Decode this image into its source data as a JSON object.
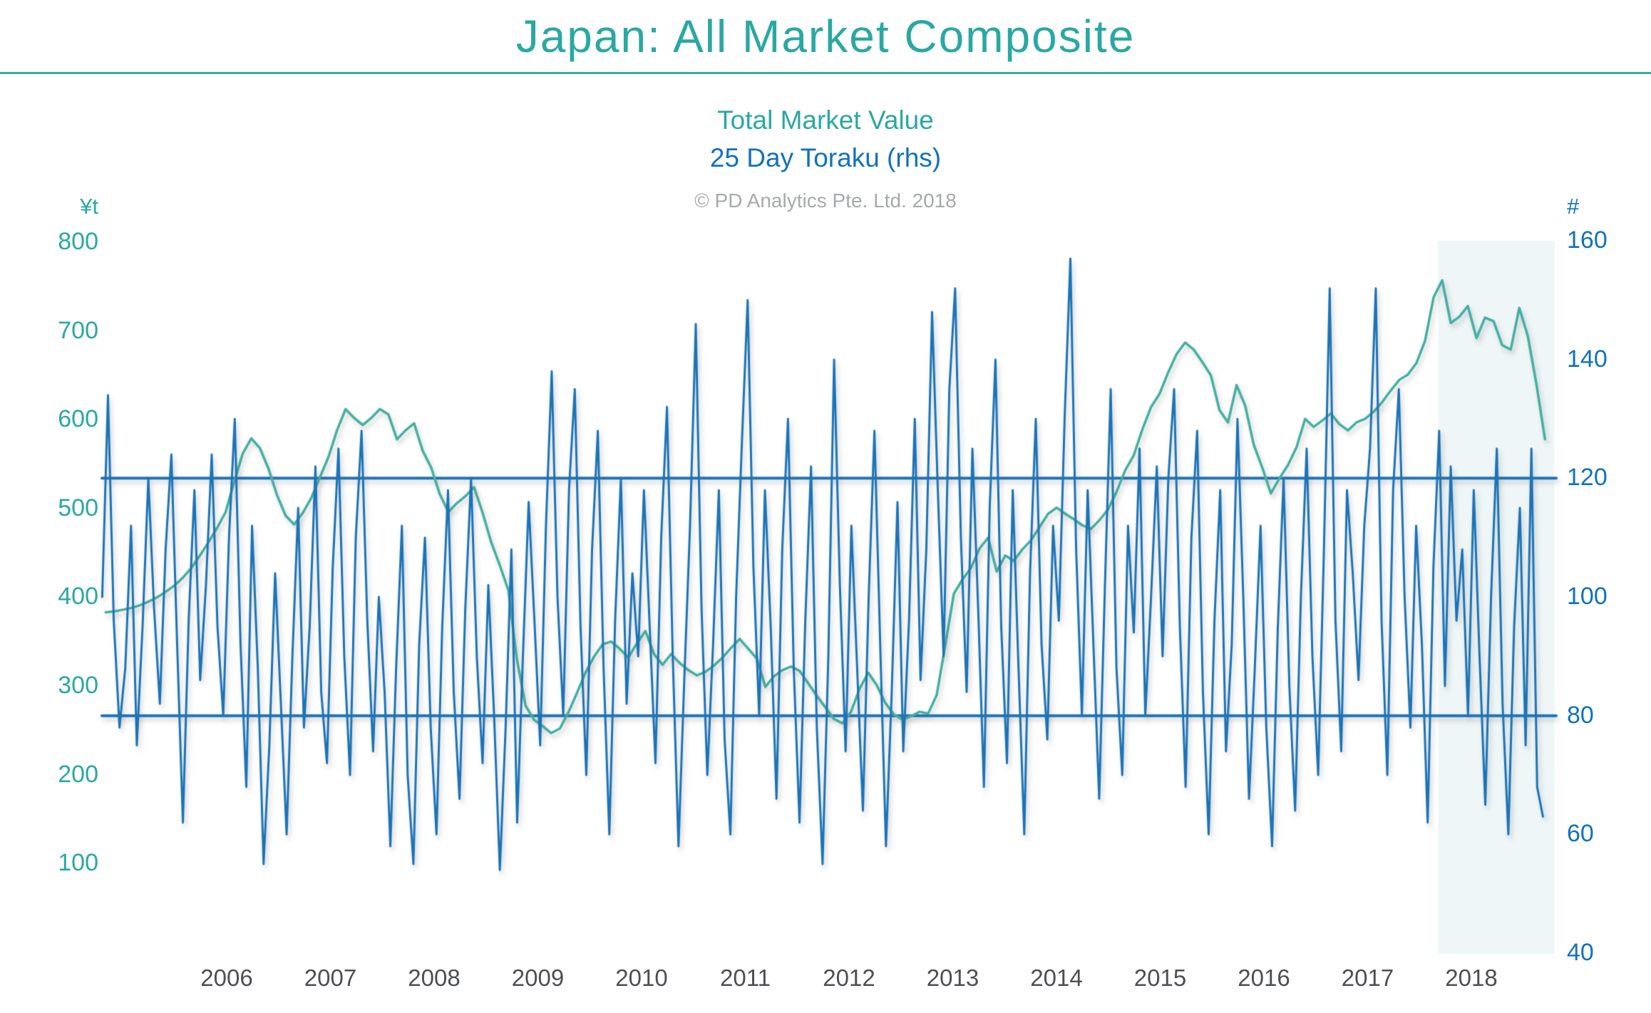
{
  "header": {
    "title": "Japan: All Market Composite"
  },
  "subtitle": {
    "line1": "Total Market Value",
    "line2": "25 Day Toraku (rhs)",
    "copyright": "© PD Analytics Pte. Ltd. 2018"
  },
  "colors": {
    "teal_text": "#2BA8A2",
    "teal_line": "#43B0A2",
    "blue_text": "#1272BA",
    "blue_line": "#1B74B9",
    "gray_text": "#A7A9AA",
    "year_text": "#4D4F52",
    "band": "#EFF6F7",
    "rule": "#35ACA4"
  },
  "chart_data": {
    "type": "line",
    "title": "Japan: All Market Composite",
    "subtitles": [
      "Total Market Value",
      "25 Day Toraku (rhs)"
    ],
    "legend_position": "top-center-as-subtitles",
    "grid": false,
    "left_axis": {
      "header": "¥t",
      "ticks": [
        800,
        700,
        600,
        500,
        400,
        300,
        200,
        100
      ],
      "range": [
        100,
        800
      ]
    },
    "right_axis": {
      "header": "#",
      "ticks": [
        160,
        140,
        120,
        100,
        80,
        60,
        40
      ],
      "range": [
        40,
        160
      ]
    },
    "x_axis": {
      "years": [
        2006,
        2007,
        2008,
        2009,
        2010,
        2011,
        2012,
        2013,
        2014,
        2015,
        2016,
        2017,
        2018
      ],
      "range": [
        2004.79,
        2018.85
      ]
    },
    "ref_lines": {
      "axis": "right",
      "values": [
        120,
        80
      ]
    },
    "highlight_band": {
      "t_start": 2017.68,
      "t_end": 2018.8
    },
    "series": [
      {
        "name": "Total Market Value",
        "axis": "left",
        "x_start": 2004.8333,
        "x_step": 0.0826,
        "values": [
          383,
          384,
          386,
          388,
          391,
          395,
          400,
          406,
          413,
          422,
          433,
          447,
          462,
          478,
          496,
          530,
          562,
          579,
          568,
          545,
          515,
          492,
          482,
          495,
          512,
          535,
          558,
          588,
          612,
          602,
          594,
          602,
          612,
          606,
          578,
          588,
          596,
          565,
          546,
          516,
          496,
          506,
          514,
          524,
          495,
          462,
          436,
          408,
          330,
          278,
          262,
          255,
          247,
          252,
          270,
          292,
          315,
          333,
          347,
          350,
          342,
          332,
          348,
          362,
          336,
          324,
          336,
          326,
          318,
          312,
          316,
          323,
          332,
          343,
          353,
          342,
          331,
          299,
          311,
          318,
          322,
          317,
          303,
          289,
          276,
          263,
          258,
          271,
          297,
          315,
          301,
          281,
          268,
          262,
          266,
          271,
          269,
          290,
          346,
          404,
          420,
          433,
          455,
          467,
          429,
          447,
          441,
          454,
          464,
          479,
          494,
          501,
          494,
          488,
          481,
          477,
          487,
          499,
          519,
          543,
          560,
          589,
          614,
          629,
          653,
          674,
          687,
          679,
          665,
          650,
          611,
          597,
          639,
          616,
          572,
          546,
          517,
          534,
          549,
          569,
          601,
          592,
          599,
          607,
          595,
          588,
          597,
          601,
          609,
          620,
          633,
          645,
          651,
          664,
          689,
          738,
          757,
          709,
          716,
          728,
          692,
          715,
          711,
          684,
          679,
          726,
          694,
          640,
          578
        ]
      },
      {
        "name": "25 Day Toraku",
        "axis": "right",
        "x_start": 2004.8,
        "x_step": 0.05556,
        "values": [
          100,
          134,
          96,
          78,
          88,
          112,
          75,
          95,
          120,
          98,
          82,
          108,
          124,
          92,
          62,
          96,
          118,
          86,
          102,
          124,
          95,
          80,
          110,
          130,
          92,
          68,
          112,
          88,
          55,
          75,
          104,
          82,
          60,
          90,
          115,
          78,
          95,
          122,
          84,
          72,
          105,
          125,
          90,
          70,
          110,
          128,
          96,
          74,
          100,
          84,
          58,
          88,
          112,
          70,
          55,
          92,
          110,
          78,
          60,
          95,
          118,
          84,
          66,
          98,
          120,
          90,
          72,
          102,
          80,
          54,
          78,
          108,
          62,
          90,
          116,
          96,
          75,
          112,
          138,
          100,
          80,
          118,
          135,
          95,
          70,
          108,
          128,
          88,
          60,
          96,
          120,
          82,
          104,
          90,
          118,
          95,
          72,
          110,
          132,
          90,
          58,
          86,
          112,
          146,
          98,
          70,
          92,
          118,
          76,
          60,
          100,
          126,
          150,
          105,
          80,
          118,
          95,
          66,
          108,
          130,
          88,
          62,
          96,
          122,
          78,
          55,
          90,
          140,
          102,
          74,
          112,
          88,
          64,
          100,
          128,
          92,
          58,
          84,
          116,
          74,
          96,
          130,
          86,
          108,
          148,
          118,
          90,
          135,
          152,
          110,
          84,
          125,
          98,
          68,
          115,
          140,
          95,
          72,
          118,
          88,
          60,
          104,
          130,
          92,
          76,
          112,
          96,
          130,
          157,
          108,
          80,
          118,
          92,
          66,
          102,
          135,
          88,
          70,
          112,
          94,
          125,
          80,
          100,
          122,
          90,
          120,
          135,
          95,
          68,
          110,
          128,
          84,
          60,
          96,
          118,
          74,
          92,
          130,
          100,
          66,
          88,
          112,
          78,
          58,
          95,
          120,
          85,
          64,
          100,
          125,
          90,
          70,
          108,
          152,
          96,
          74,
          118,
          104,
          86,
          112,
          125,
          152,
          96,
          70,
          118,
          135,
          100,
          78,
          112,
          92,
          62,
          105,
          128,
          85,
          122,
          96,
          108,
          80,
          118,
          90,
          65,
          100,
          125,
          82,
          60,
          95,
          115,
          75,
          125,
          68,
          63
        ]
      }
    ]
  }
}
